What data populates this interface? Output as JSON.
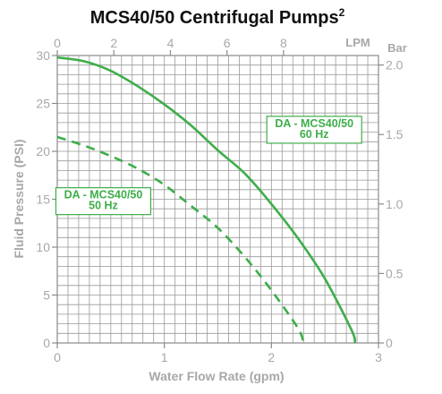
{
  "chart_data": {
    "type": "line",
    "title": "MCS40/50 Centrifugal Pumps",
    "title_superscript": "2",
    "xlabel": "Water Flow Rate (gpm)",
    "ylabel": "Fluid Pressure (PSI)",
    "xlim": [
      0,
      3
    ],
    "ylim": [
      0,
      30
    ],
    "x_ticks": [
      "0",
      "1",
      "2",
      "3"
    ],
    "y_ticks": [
      "0",
      "5",
      "10",
      "15",
      "20",
      "25",
      "30"
    ],
    "x2_unit": "LPM",
    "x2_ticks": [
      "0",
      "2",
      "4",
      "6",
      "8"
    ],
    "y2_unit": "Bar",
    "y2_ticks": [
      "0",
      "0.5",
      "1.0",
      "1.5",
      "2.0"
    ],
    "grid": true,
    "color": "#3dae49",
    "series": [
      {
        "name": "DA - MCS40/50 60 Hz",
        "label_lines": [
          "DA - MCS40/50",
          "60 Hz"
        ],
        "style": "solid",
        "x": [
          0,
          0.25,
          0.5,
          0.75,
          1.0,
          1.25,
          1.5,
          1.75,
          2.0,
          2.25,
          2.5,
          2.75,
          2.78
        ],
        "y": [
          29.8,
          29.4,
          28.4,
          26.8,
          24.9,
          22.7,
          20.1,
          17.7,
          14.5,
          10.9,
          6.7,
          1.3,
          0
        ]
      },
      {
        "name": "DA - MCS40/50 50 Hz",
        "label_lines": [
          "DA - MCS40/50",
          "50 Hz"
        ],
        "style": "dashed",
        "x": [
          0,
          0.25,
          0.5,
          0.75,
          1.0,
          1.25,
          1.5,
          1.75,
          2.0,
          2.25,
          2.3
        ],
        "y": [
          21.5,
          20.6,
          19.5,
          18.2,
          16.5,
          14.3,
          12.0,
          9.0,
          5.5,
          1.5,
          0
        ]
      }
    ]
  }
}
